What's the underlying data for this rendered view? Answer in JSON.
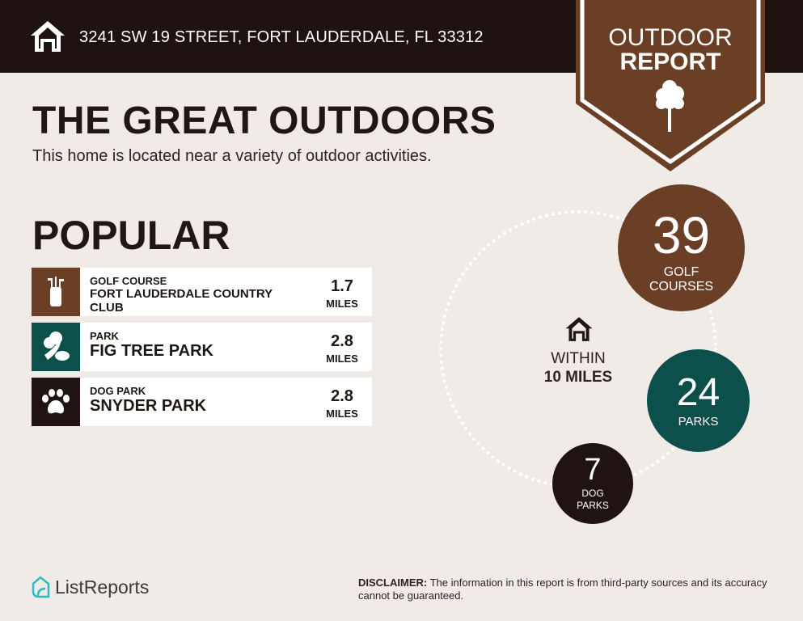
{
  "header": {
    "address": "3241 SW 19 STREET, FORT LAUDERDALE, FL 33312",
    "icon": "home-icon"
  },
  "badge": {
    "line1": "OUTDOOR",
    "line2": "REPORT",
    "icon": "tree-icon"
  },
  "title": "THE GREAT OUTDOORS",
  "subtitle": "This home is located near a variety of outdoor activities.",
  "popular": {
    "heading": "POPULAR",
    "items": [
      {
        "category": "GOLF COURSE",
        "name": "FORT LAUDERDALE COUNTRY CLUB",
        "distance": "1.7",
        "unit": "MILES",
        "icon": "golf-bag-icon",
        "color": "#6b3f26"
      },
      {
        "category": "PARK",
        "name": "FIG TREE PARK",
        "distance": "2.8",
        "unit": "MILES",
        "icon": "park-trees-icon",
        "color": "#0d4f4a"
      },
      {
        "category": "DOG PARK",
        "name": "SNYDER PARK",
        "distance": "2.8",
        "unit": "MILES",
        "icon": "paw-icon",
        "color": "#1f1412"
      }
    ]
  },
  "summary": {
    "within_label": "WITHIN",
    "within_value": "10 MILES",
    "counts": [
      {
        "value": "39",
        "label": "GOLF COURSES",
        "color": "#6b3f26"
      },
      {
        "value": "24",
        "label": "PARKS",
        "color": "#0d4f4a"
      },
      {
        "value": "7",
        "label": "DOG PARKS",
        "color": "#1f1412"
      }
    ]
  },
  "footer": {
    "logo": "ListReports",
    "disclaimer_label": "DISCLAIMER:",
    "disclaimer_text": " The information in this report is from third-party sources and its accuracy cannot be guaranteed."
  }
}
